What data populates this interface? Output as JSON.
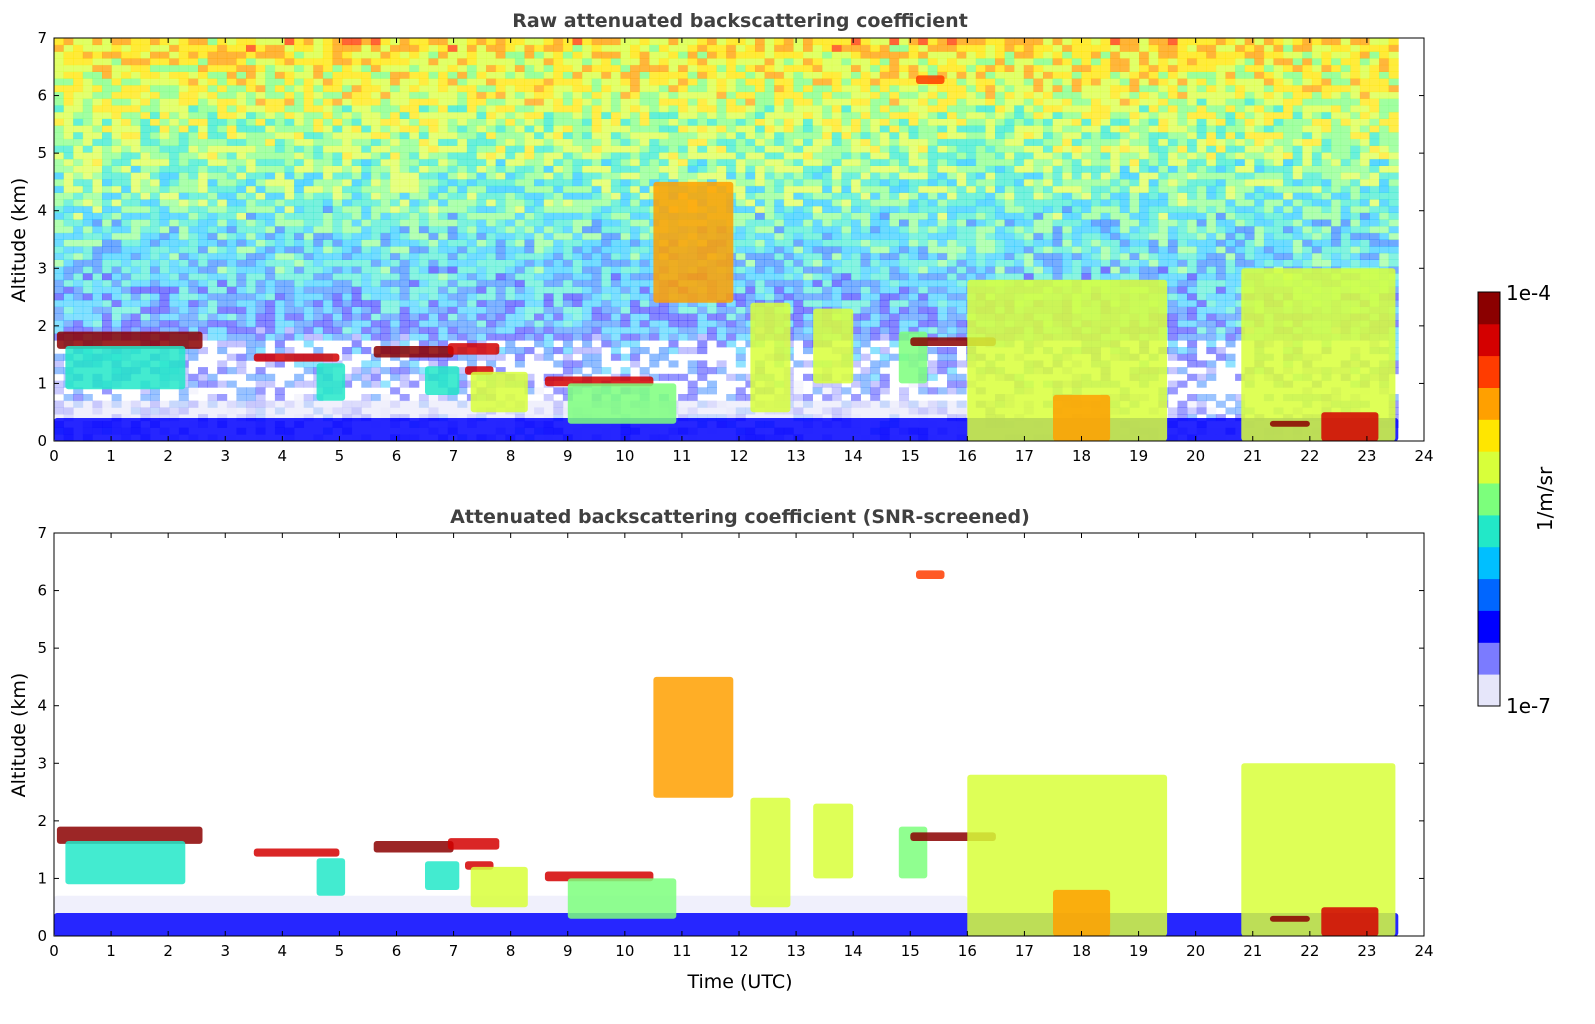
{
  "chart_data": [
    {
      "type": "heatmap",
      "title": "Raw attenuated backscattering coefficient",
      "xlabel": "",
      "ylabel": "Altitude (km)",
      "xlim": [
        0,
        24
      ],
      "ylim": [
        0,
        7
      ],
      "x_ticks": [
        "0",
        "1",
        "2",
        "3",
        "4",
        "5",
        "6",
        "7",
        "8",
        "9",
        "10",
        "11",
        "12",
        "13",
        "14",
        "15",
        "16",
        "17",
        "18",
        "19",
        "20",
        "21",
        "22",
        "23",
        "24"
      ],
      "y_ticks": [
        "0",
        "1",
        "2",
        "3",
        "4",
        "5",
        "6",
        "7"
      ],
      "data_end_time": 23.55,
      "noise": true,
      "features": [
        {
          "name": "boundary-layer",
          "t0": 0.0,
          "t1": 23.55,
          "z0": 0.0,
          "z1": 0.4,
          "level": 0.18
        },
        {
          "name": "residual-layer",
          "t0": 0.0,
          "t1": 16.0,
          "z0": 0.4,
          "z1": 0.7,
          "level": 0.05
        },
        {
          "name": "cloud-1",
          "t0": 0.05,
          "t1": 2.6,
          "z0": 1.6,
          "z1": 1.9,
          "level": 1.0
        },
        {
          "name": "virga-1",
          "t0": 0.2,
          "t1": 2.3,
          "z0": 0.9,
          "z1": 1.65,
          "level": 0.45
        },
        {
          "name": "cloud-2",
          "t0": 3.5,
          "t1": 5.0,
          "z0": 1.38,
          "z1": 1.52,
          "level": 0.9
        },
        {
          "name": "virga-2",
          "t0": 4.6,
          "t1": 5.1,
          "z0": 0.7,
          "z1": 1.35,
          "level": 0.4
        },
        {
          "name": "cloud-3",
          "t0": 5.6,
          "t1": 7.0,
          "z0": 1.45,
          "z1": 1.65,
          "level": 0.95
        },
        {
          "name": "cloud-4",
          "t0": 6.9,
          "t1": 7.8,
          "z0": 1.5,
          "z1": 1.7,
          "level": 0.9
        },
        {
          "name": "virga-3",
          "t0": 6.5,
          "t1": 7.1,
          "z0": 0.8,
          "z1": 1.3,
          "level": 0.45
        },
        {
          "name": "cloud-5",
          "t0": 7.2,
          "t1": 7.7,
          "z0": 1.15,
          "z1": 1.3,
          "level": 0.85
        },
        {
          "name": "virga-4",
          "t0": 7.3,
          "t1": 8.3,
          "z0": 0.5,
          "z1": 1.2,
          "level": 0.55
        },
        {
          "name": "cloud-6",
          "t0": 8.6,
          "t1": 10.5,
          "z0": 0.95,
          "z1": 1.12,
          "level": 0.9
        },
        {
          "name": "virga-5",
          "t0": 9.0,
          "t1": 10.9,
          "z0": 0.3,
          "z1": 1.0,
          "level": 0.5
        },
        {
          "name": "mid-cloud",
          "t0": 10.5,
          "t1": 11.9,
          "z0": 2.4,
          "z1": 4.5,
          "level": 0.7
        },
        {
          "name": "fall-1",
          "t0": 12.2,
          "t1": 12.9,
          "z0": 0.5,
          "z1": 2.4,
          "level": 0.6
        },
        {
          "name": "fall-2",
          "t0": 13.3,
          "t1": 14.0,
          "z0": 1.0,
          "z1": 2.3,
          "level": 0.6
        },
        {
          "name": "fall-3",
          "t0": 14.8,
          "t1": 15.3,
          "z0": 1.0,
          "z1": 1.9,
          "level": 0.5
        },
        {
          "name": "cloud-7",
          "t0": 15.0,
          "t1": 16.5,
          "z0": 1.65,
          "z1": 1.8,
          "level": 0.95
        },
        {
          "name": "convective-1",
          "t0": 16.0,
          "t1": 19.5,
          "z0": 0.0,
          "z1": 2.8,
          "level": 0.55
        },
        {
          "name": "core-1",
          "t0": 17.5,
          "t1": 18.5,
          "z0": 0.0,
          "z1": 0.8,
          "level": 0.75
        },
        {
          "name": "convective-2",
          "t0": 20.8,
          "t1": 23.5,
          "z0": 0.0,
          "z1": 3.0,
          "level": 0.55
        },
        {
          "name": "core-2",
          "t0": 22.2,
          "t1": 23.2,
          "z0": 0.0,
          "z1": 0.5,
          "level": 0.85
        },
        {
          "name": "cloud-8",
          "t0": 21.3,
          "t1": 22.0,
          "z0": 0.25,
          "z1": 0.35,
          "level": 1.0
        },
        {
          "name": "high-cloud",
          "t0": 15.1,
          "t1": 15.6,
          "z0": 6.2,
          "z1": 6.35,
          "level": 0.8
        }
      ]
    },
    {
      "type": "heatmap",
      "title": "Attenuated backscattering coefficient (SNR-screened)",
      "xlabel": "Time (UTC)",
      "ylabel": "Altitude (km)",
      "xlim": [
        0,
        24
      ],
      "ylim": [
        0,
        7
      ],
      "x_ticks": [
        "0",
        "1",
        "2",
        "3",
        "4",
        "5",
        "6",
        "7",
        "8",
        "9",
        "10",
        "11",
        "12",
        "13",
        "14",
        "15",
        "16",
        "17",
        "18",
        "19",
        "20",
        "21",
        "22",
        "23",
        "24"
      ],
      "y_ticks": [
        "0",
        "1",
        "2",
        "3",
        "4",
        "5",
        "6",
        "7"
      ],
      "data_end_time": 23.55,
      "noise": false
    }
  ],
  "colorbar": {
    "label": "1/m/sr",
    "max_label": "1e-4",
    "min_label": "1e-7",
    "colors": [
      "#e6e6fa",
      "#7b7bff",
      "#0000ff",
      "#0066ff",
      "#00bfff",
      "#22e8c8",
      "#7cff7c",
      "#d8ff3a",
      "#ffe600",
      "#ffa000",
      "#ff3c00",
      "#d40000",
      "#8b0000"
    ]
  }
}
